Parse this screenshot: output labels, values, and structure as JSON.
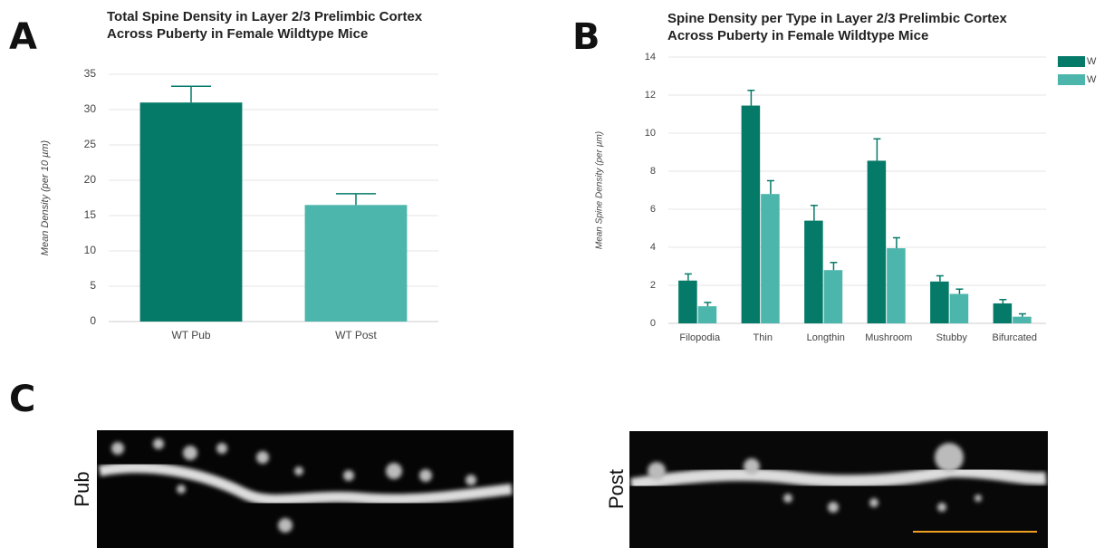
{
  "chart_data": [
    {
      "type": "bar",
      "title": "Total Spine Density in Layer 2/3 Prelimbic Cortex Across Puberty in Female Wildtype Mice",
      "ylabel": "Mean Density (per 10 µm)",
      "categories": [
        "WT Pub",
        "WT Post"
      ],
      "values": [
        31,
        16.5
      ],
      "errors": [
        2.3,
        1.6
      ],
      "colors": [
        "#057a68",
        "#4db6ac"
      ],
      "ylim": [
        0,
        35
      ],
      "yticks": [
        0,
        5,
        10,
        15,
        20,
        25,
        30,
        35
      ],
      "grid": true
    },
    {
      "type": "grouped_bar",
      "title": "Spine Density per Type in Layer 2/3 Prelimbic Cortex Across Puberty in Female Wildtype Mice",
      "ylabel": "Mean Spine Density (per µm)",
      "categories": [
        "Filopodia",
        "Thin",
        "Longthin",
        "Mushroom",
        "Stubby",
        "Bifurcated"
      ],
      "series": [
        {
          "name": "W",
          "color": "#057a68",
          "values": [
            2.25,
            11.45,
            5.4,
            8.55,
            2.2,
            1.05
          ],
          "errors": [
            0.35,
            0.8,
            0.8,
            1.15,
            0.3,
            0.2
          ]
        },
        {
          "name": "W",
          "color": "#4db6ac",
          "values": [
            0.9,
            6.8,
            2.8,
            3.95,
            1.55,
            0.35
          ],
          "errors": [
            0.2,
            0.7,
            0.4,
            0.55,
            0.25,
            0.15
          ]
        }
      ],
      "ylim": [
        0,
        14
      ],
      "yticks": [
        0,
        2,
        4,
        6,
        8,
        10,
        12,
        14
      ],
      "grid": true,
      "legend": "right"
    }
  ],
  "panel_labels": [
    "A",
    "B",
    "C"
  ],
  "images": [
    {
      "label": "Pub"
    },
    {
      "label": "Post"
    }
  ]
}
